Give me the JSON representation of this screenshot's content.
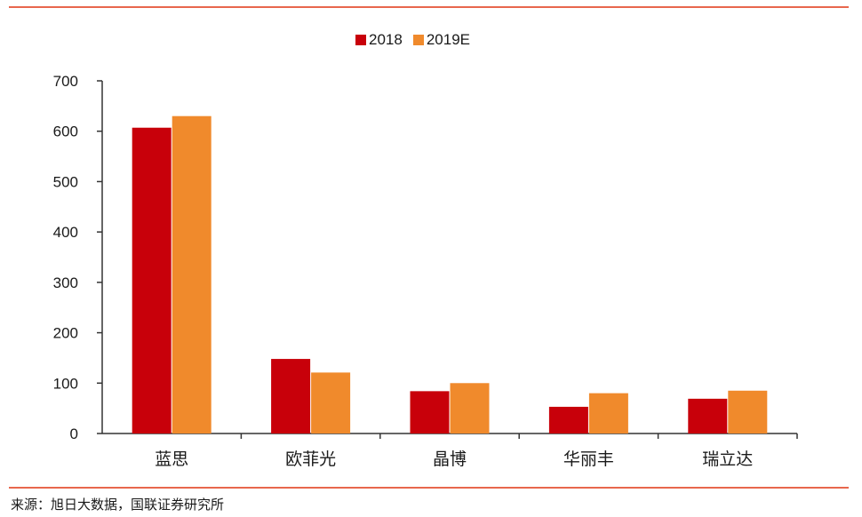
{
  "colors": {
    "rule": "#e8674d",
    "series_2018": "#c8000a",
    "series_2019E": "#f08a2c",
    "axis": "#333333",
    "text": "#1a1a1a"
  },
  "chart_data": {
    "type": "bar",
    "title": "",
    "xlabel": "",
    "ylabel": "",
    "categories": [
      "蓝思",
      "欧菲光",
      "晶博",
      "华丽丰",
      "瑞立达"
    ],
    "series": [
      {
        "name": "2018",
        "values": [
          607,
          148,
          84,
          53,
          69
        ]
      },
      {
        "name": "2019E",
        "values": [
          630,
          121,
          100,
          80,
          85
        ]
      }
    ],
    "ylim": [
      0,
      700
    ],
    "yticks": [
      0,
      100,
      200,
      300,
      400,
      500,
      600,
      700
    ],
    "grid": false,
    "legend_position": "top-center"
  },
  "source_note": "来源：旭日大数据，国联证券研究所"
}
